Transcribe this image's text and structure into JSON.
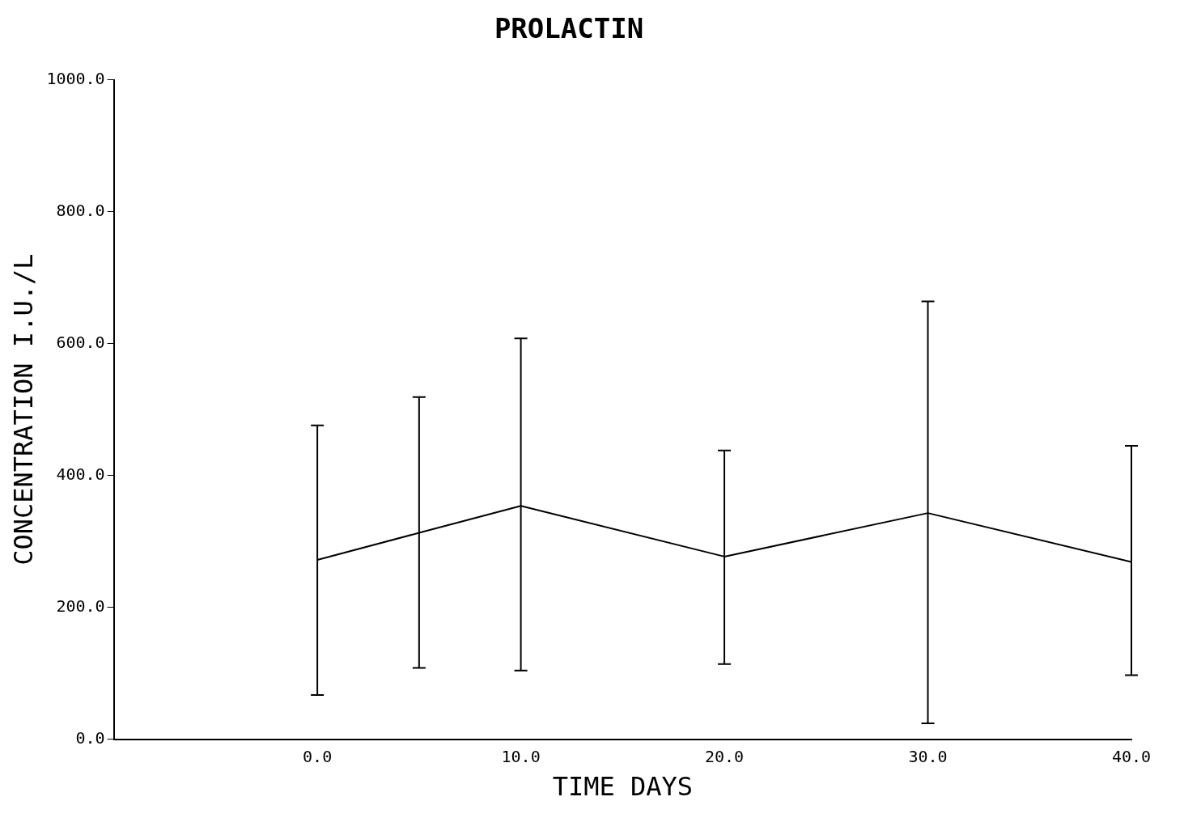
{
  "chart_data": {
    "type": "line",
    "title": "PROLACTIN",
    "xlabel": "TIME DAYS",
    "ylabel": "CONCENTRATION I.U./L",
    "x": [
      0,
      5,
      10,
      20,
      30,
      40
    ],
    "series": [
      {
        "color": "#000000",
        "values": [
          272,
          313,
          354,
          277,
          343,
          269
        ],
        "errors": [
          [
            67,
            476
          ],
          [
            108,
            519
          ],
          [
            104,
            608
          ],
          [
            114,
            438
          ],
          [
            24,
            664
          ],
          [
            97,
            445
          ]
        ]
      }
    ],
    "xlim": [
      -10,
      40
    ],
    "xticks": [
      {
        "value": 0,
        "label": "0.0"
      },
      {
        "value": 10,
        "label": "10.0"
      },
      {
        "value": 20,
        "label": "20.0"
      },
      {
        "value": 30,
        "label": "30.0"
      },
      {
        "value": 40,
        "label": "40.0"
      }
    ],
    "ylim": [
      0,
      1000
    ],
    "yticks": [
      {
        "value": 0,
        "label": "0.0"
      },
      {
        "value": 200,
        "label": "200.0"
      },
      {
        "value": 400,
        "label": "400.0"
      },
      {
        "value": 600,
        "label": "600.0"
      },
      {
        "value": 800,
        "label": "800.0"
      },
      {
        "value": 1000,
        "label": "1000.0"
      }
    ],
    "grid": false,
    "legend": false,
    "marker": "none",
    "line_style": "solid"
  }
}
